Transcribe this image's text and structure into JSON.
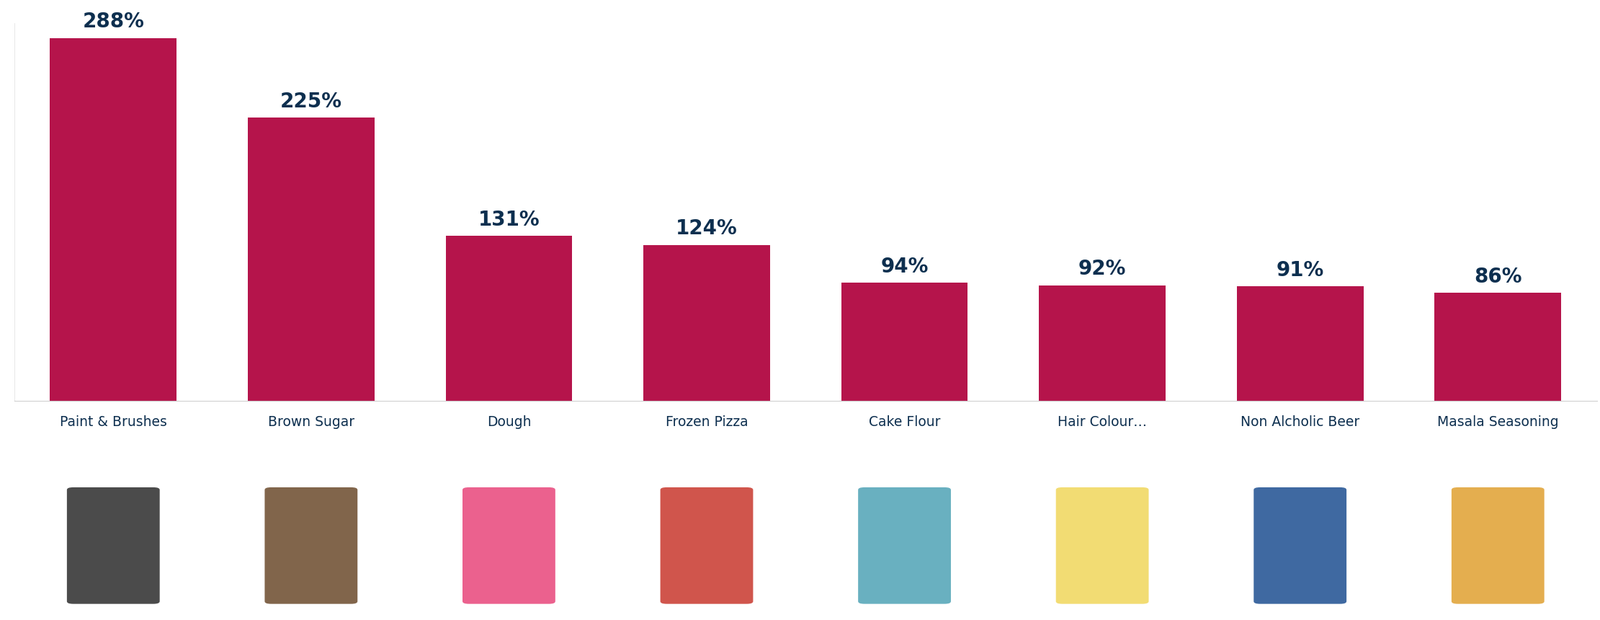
{
  "chart_data": {
    "type": "bar",
    "categories": [
      "Paint & Brushes",
      "Brown Sugar",
      "Dough",
      "Frozen Pizza",
      "Cake Flour",
      "Hair Colour…",
      "Non Alcholic Beer",
      "Masala Seasoning"
    ],
    "values": [
      288,
      225,
      131,
      124,
      94,
      92,
      91,
      86
    ],
    "value_labels": [
      "288%",
      "225%",
      "131%",
      "124%",
      "94%",
      "92%",
      "91%",
      "86%"
    ],
    "color": "#b5144b",
    "ylim": [
      0,
      300
    ],
    "grid": false,
    "data_labels": true,
    "tick_labels": "x"
  }
}
